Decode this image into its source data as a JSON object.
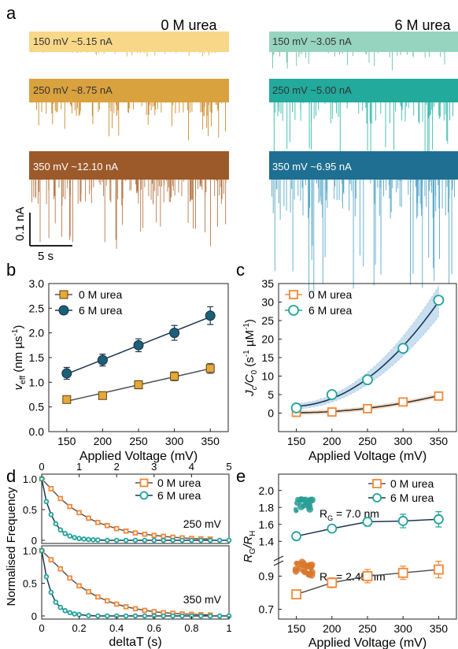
{
  "panels": {
    "a": {
      "letter": "a",
      "conditions": [
        {
          "title": "0 M urea",
          "traces": [
            {
              "label": "150 mV ~5.15 nA",
              "color": "#f8d888",
              "spike_color": "#e0b050"
            },
            {
              "label": "250 mV ~8.75 nA",
              "color": "#d9a23e",
              "spike_color": "#c98c2a"
            },
            {
              "label": "350 mV ~12.10 nA",
              "color": "#9c5a2a",
              "spike_color": "#b87a4a"
            }
          ]
        },
        {
          "title": "6 M urea",
          "traces": [
            {
              "label": "150 mV ~3.05 nA",
              "color": "#96d4c0",
              "spike_color": "#6cbfa6"
            },
            {
              "label": "250 mV ~5.00 nA",
              "color": "#22aa9c",
              "spike_color": "#3bbcb0"
            },
            {
              "label": "350 mV ~6.95 nA",
              "color": "#1f6f92",
              "spike_color": "#5aa9c8"
            }
          ]
        }
      ],
      "scalebar": {
        "y_label": "0.1 nA",
        "x_label": "5 s"
      }
    },
    "b": {
      "letter": "b"
    },
    "c": {
      "letter": "c"
    },
    "d": {
      "letter": "d"
    },
    "e": {
      "letter": "e"
    }
  },
  "colors": {
    "orange": "#f0883a",
    "orange_fill": "#e6a83a",
    "teal": "#21a39a",
    "dark_teal": "#1d5f78",
    "fit_gray": "#555555",
    "fit_dark": "#1e3550"
  },
  "chart_data": [
    {
      "panel": "b",
      "type": "line",
      "xlabel": "Applied Voltage (mV)",
      "ylabel": "v_eff (nm µs⁻¹)",
      "ylabel_parts": {
        "sym": "v",
        "sub": "eff",
        "unit": " (nm µs",
        "sup": "-1",
        "close": ")"
      },
      "x": [
        150,
        200,
        250,
        300,
        350
      ],
      "xlim": [
        125,
        375
      ],
      "ylim": [
        0.0,
        3.0
      ],
      "xticks": [
        150,
        200,
        250,
        300,
        350
      ],
      "yticks": [
        0.0,
        0.5,
        1.0,
        1.5,
        2.0,
        2.5,
        3.0
      ],
      "ytick_labels": [
        "0.0",
        "0.5",
        "1.0",
        "1.5",
        "2.0",
        "2.5",
        "3.0"
      ],
      "legend": "top-left",
      "series": [
        {
          "name": "0 M urea",
          "values": [
            0.65,
            0.73,
            0.95,
            1.12,
            1.28
          ],
          "errors": [
            0.06,
            0.06,
            0.08,
            0.09,
            0.1
          ],
          "marker": "square",
          "color": "#e6a83a",
          "line": "#555555"
        },
        {
          "name": "6 M urea",
          "values": [
            1.18,
            1.45,
            1.75,
            2.0,
            2.35
          ],
          "errors": [
            0.12,
            0.12,
            0.13,
            0.15,
            0.18
          ],
          "marker": "circle",
          "color": "#1d5f78",
          "line": "#1e3550"
        }
      ]
    },
    {
      "panel": "c",
      "type": "line",
      "xlabel": "Applied Voltage (mV)",
      "ylabel": "J_c/C_0 (s⁻¹ µM⁻¹)",
      "ylabel_parts": {
        "a": "J",
        "asub": "c",
        "b": "/C",
        "bsub": "0",
        "unit": " (s",
        "sup1": "-1",
        "mid": " µM",
        "sup2": "-1",
        "close": ")"
      },
      "x": [
        150,
        200,
        250,
        300,
        350
      ],
      "xlim": [
        125,
        375
      ],
      "ylim": [
        -5,
        35
      ],
      "xticks": [
        150,
        200,
        250,
        300,
        350
      ],
      "yticks": [
        0,
        5,
        10,
        15,
        20,
        25,
        30,
        35
      ],
      "ytick_labels": [
        "0",
        "5",
        "10",
        "15",
        "20",
        "25",
        "30",
        "35"
      ],
      "legend": "top-left",
      "series": [
        {
          "name": "0 M urea",
          "values": [
            0.2,
            0.3,
            1.2,
            3.0,
            4.6
          ],
          "marker": "square-open",
          "color": "#f0883a",
          "line": "#333333"
        },
        {
          "name": "6 M urea",
          "values": [
            1.4,
            5.0,
            9.0,
            17.5,
            30.5
          ],
          "marker": "circle-open",
          "color": "#21a39a",
          "line": "#1e3550"
        }
      ]
    },
    {
      "panel": "d",
      "type": "line",
      "xlabel": "deltaT (s)",
      "ylabel": "Normalised Frequency",
      "top_axis": {
        "ticks": [
          0,
          1,
          2,
          3,
          4,
          5
        ]
      },
      "bottom_axis": {
        "ticks": [
          0,
          0.2,
          0.4,
          0.6,
          0.8,
          1
        ],
        "tick_labels": [
          "0",
          "0.2",
          "0.4",
          "0.6",
          "0.8",
          "1"
        ]
      },
      "yticks": [
        0,
        0.5,
        1.0
      ],
      "ytick_labels": [
        "0",
        "0.5",
        "1.0"
      ],
      "legend": "top-right",
      "subplots": [
        {
          "annotation": "250 mV",
          "x_axis": "top",
          "series": [
            {
              "name": "0 M urea",
              "x": [
                0,
                0.25,
                0.5,
                0.75,
                1.0,
                1.25,
                1.5,
                1.75,
                2.0,
                2.25,
                2.5,
                2.75,
                3.0,
                3.25,
                3.5,
                3.75,
                4.0,
                4.25,
                4.5
              ],
              "y": [
                1.0,
                0.84,
                0.68,
                0.55,
                0.45,
                0.36,
                0.29,
                0.24,
                0.19,
                0.15,
                0.12,
                0.1,
                0.08,
                0.065,
                0.05,
                0.04,
                0.03,
                0.025,
                0.02
              ]
            },
            {
              "name": "6 M urea",
              "x": [
                0,
                0.125,
                0.25,
                0.375,
                0.5,
                0.625,
                0.75,
                0.875,
                1.0,
                1.125,
                1.25,
                1.375,
                1.5,
                1.75,
                2.0,
                2.25,
                2.5,
                2.75,
                3.0,
                3.25,
                3.5,
                3.75,
                4.0,
                4.25,
                4.5,
                4.75,
                5.0
              ],
              "y": [
                1.0,
                0.63,
                0.42,
                0.27,
                0.17,
                0.11,
                0.07,
                0.045,
                0.03,
                0.02,
                0.013,
                0.008,
                0.005,
                0,
                0,
                0,
                0,
                0,
                0,
                0,
                0,
                0,
                0,
                0,
                0,
                0,
                0
              ]
            }
          ]
        },
        {
          "annotation": "350 mV",
          "x_axis": "bottom",
          "series": [
            {
              "name": "0 M urea",
              "x": [
                0,
                0.05,
                0.1,
                0.15,
                0.2,
                0.25,
                0.3,
                0.35,
                0.4,
                0.45,
                0.5,
                0.55,
                0.6,
                0.65,
                0.7,
                0.75,
                0.8,
                0.85,
                0.9
              ],
              "y": [
                1.0,
                0.86,
                0.72,
                0.58,
                0.46,
                0.37,
                0.29,
                0.23,
                0.18,
                0.14,
                0.11,
                0.085,
                0.065,
                0.05,
                0.04,
                0.03,
                0.025,
                0.02,
                0.015
              ]
            },
            {
              "name": "6 M urea",
              "x": [
                0,
                0.025,
                0.05,
                0.075,
                0.1,
                0.125,
                0.15,
                0.175,
                0.2,
                0.25,
                0.3,
                0.35,
                0.4,
                0.45,
                0.5,
                0.55,
                0.6,
                0.65,
                0.7,
                0.75,
                0.8,
                0.85,
                0.9,
                0.95,
                1.0
              ],
              "y": [
                1.0,
                0.6,
                0.36,
                0.21,
                0.13,
                0.08,
                0.05,
                0.03,
                0.02,
                0.005,
                0,
                0,
                0,
                0,
                0,
                0,
                0,
                0,
                0,
                0,
                0,
                0,
                0,
                0,
                0
              ]
            }
          ]
        }
      ]
    },
    {
      "panel": "e",
      "type": "line",
      "xlabel": "Applied Voltage (mV)",
      "ylabel": "R_G/R_H",
      "x": [
        150,
        200,
        250,
        300,
        350
      ],
      "xlim": [
        125,
        375
      ],
      "xticks": [
        150,
        200,
        250,
        300,
        350
      ],
      "broken_axis": {
        "upper_ylim": [
          1.3,
          2.1
        ],
        "upper_ticks": [
          1.4,
          1.6,
          1.8,
          2.0
        ],
        "upper_tick_labels": [
          "1.4",
          "1.6",
          "1.8",
          "2.0"
        ],
        "lower_ylim": [
          0.65,
          1.05
        ],
        "lower_ticks": [
          0.7,
          0.9
        ],
        "lower_tick_labels": [
          "0.7",
          "0.9"
        ]
      },
      "legend": "top-right",
      "annotations": [
        {
          "sym": "R",
          "sub": "G",
          "text": " = 7.0 nm",
          "color": "#21a39a"
        },
        {
          "sym": "R",
          "sub": "G",
          "text": " = 2.45 nm",
          "color": "#e07a30"
        }
      ],
      "series": [
        {
          "name": "0 M urea",
          "values": [
            0.79,
            0.86,
            0.9,
            0.92,
            0.94
          ],
          "errors": [
            0.02,
            0.03,
            0.04,
            0.04,
            0.05
          ],
          "marker": "square-open",
          "color": "#f0883a"
        },
        {
          "name": "6 M urea",
          "values": [
            1.46,
            1.55,
            1.63,
            1.64,
            1.66
          ],
          "errors": [
            0.02,
            0.04,
            0.05,
            0.08,
            0.09
          ],
          "marker": "circle-open",
          "color": "#21a39a"
        }
      ]
    }
  ]
}
